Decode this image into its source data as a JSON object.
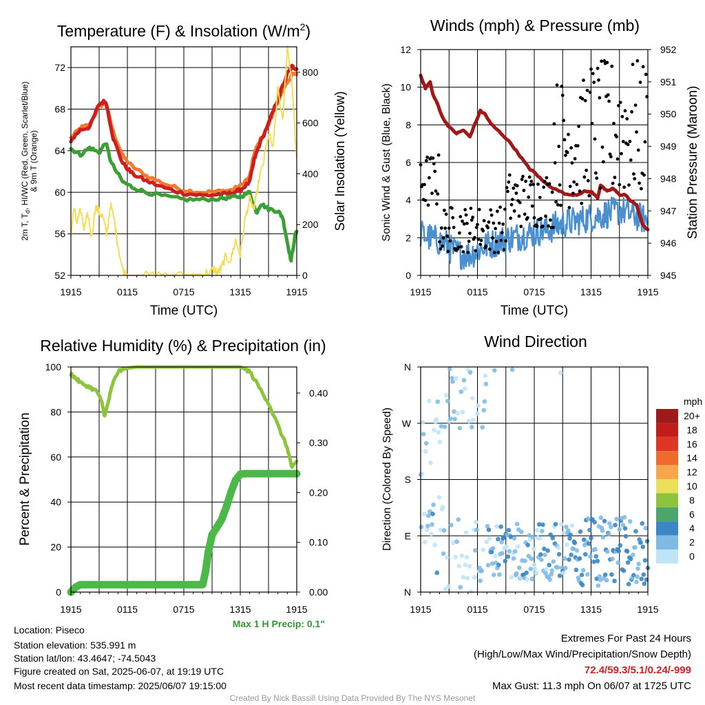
{
  "panels": {
    "temp": {
      "title": "Temperature (F) & Insolation (W/m",
      "title_sup": "2",
      "title_close": ")",
      "ylabel_left_line1": "2m T, T",
      "ylabel_left_sub": "d",
      "ylabel_left_line1b": ", HI/WC (Red, Green, Scarlet/Blue)",
      "ylabel_left_line2": "& 9m T (Orange)",
      "ylabel_right": "Solar Insolation (Yellow)",
      "xlabel": "Time (UTC)"
    },
    "wind": {
      "title": "Winds (mph) & Pressure (mb)",
      "ylabel_left": "Sonic Wind & Gust (Blue, Black)",
      "ylabel_right": "Station Pressure (Maroon)",
      "xlabel": "Time (UTC)"
    },
    "rh": {
      "title": "Relative Humidity (%) & Precipitation (in)",
      "ylabel_left": "Percent & Precipitation",
      "max_precip": "Max 1 H Precip: 0.1\""
    },
    "dir": {
      "title": "Wind Direction",
      "ylabel_left": "Direction (Colored By Speed)",
      "legend_unit": "mph"
    }
  },
  "footer": {
    "location": "Location: Piseco",
    "elevation": "Station elevation: 535.991 m",
    "latlon": "Station lat/lon: 43.4647; -74.5043",
    "created": "Figure created on Sat, 2025-06-07, at 19:19 UTC",
    "recent": "Most recent data timestamp: 2025/06/07 19:15:00",
    "extremes_title": "Extremes For Past 24 Hours",
    "extremes_sub": "(High/Low/Max Wind/Precipitation/Snow Depth)",
    "extremes_values": "72.4/59.3/5.1/0.24/-999",
    "max_gust": "Max Gust: 11.3 mph On 06/07 at 1725 UTC",
    "credit": "Created By Nick Bassill Using Data Provided By The NYS Mesonet"
  },
  "colors": {
    "temp_red": "#cc1f1f",
    "dewpoint_green": "#3aa035",
    "t9m_orange": "#f07a30",
    "insolation_yellow": "#f5dc50",
    "wind_blue": "#4a90d0",
    "gust_black": "#000000",
    "pressure_maroon": "#a01818",
    "rh_lightgreen": "#8cc43c",
    "precip_green": "#4cb848",
    "precip_label_green": "#2e9a2e",
    "extremes_red": "#d02020",
    "credit_gray": "#999999"
  },
  "chart_data": [
    {
      "type": "line",
      "panel": "temp",
      "x_ticks": [
        "1915",
        "0115",
        "0715",
        "1315",
        "1915"
      ],
      "x_range": [
        0,
        24
      ],
      "ylim": [
        52,
        74
      ],
      "y_ticks": [
        52,
        56,
        60,
        64,
        68,
        72
      ],
      "y2lim": [
        0,
        900
      ],
      "y2_ticks": [
        0,
        200,
        400,
        600,
        800
      ],
      "series": [
        {
          "axis": "left",
          "color_key": "t9m_orange",
          "x": [
            0,
            1,
            2,
            3,
            3.7,
            4.5,
            5.5,
            6.5,
            8,
            10,
            12,
            14,
            16,
            17,
            18,
            19,
            19.5,
            20,
            21,
            22,
            23,
            23.5,
            24
          ],
          "y": [
            65.2,
            66.2,
            66.5,
            68.3,
            68.6,
            65.8,
            63.5,
            62.5,
            61.6,
            60.8,
            60.2,
            60.0,
            60.1,
            60.2,
            60.6,
            61.5,
            63.8,
            64.8,
            66.5,
            68.8,
            70.5,
            71.4,
            71.3
          ]
        },
        {
          "axis": "left",
          "color_key": "temp_red",
          "x": [
            0,
            1,
            2,
            3,
            3.7,
            4.5,
            5.5,
            6.5,
            8,
            10,
            12,
            14,
            16,
            17,
            18,
            19,
            19.5,
            20,
            21,
            22,
            23,
            23.5,
            24
          ],
          "y": [
            65.0,
            66.0,
            66.3,
            68.5,
            68.8,
            65.2,
            62.8,
            61.8,
            61.1,
            60.4,
            59.9,
            59.7,
            59.8,
            59.9,
            60.2,
            61.0,
            63.2,
            64.5,
            66.6,
            69.0,
            71.4,
            72.1,
            71.9
          ]
        },
        {
          "axis": "left",
          "color_key": "dewpoint_green",
          "x": [
            0,
            1,
            2,
            3,
            3.7,
            4.3,
            5.5,
            6.5,
            8,
            10,
            12,
            14,
            16,
            17,
            18,
            19,
            19.7,
            20.2,
            21,
            22,
            22.5,
            23,
            23.4,
            23.8,
            24
          ],
          "y": [
            64.2,
            63.6,
            64.3,
            63.8,
            64.8,
            62.8,
            61.0,
            60.5,
            60.0,
            59.6,
            59.3,
            59.3,
            59.4,
            59.5,
            59.6,
            60.0,
            58.0,
            58.9,
            58.4,
            58.2,
            57.6,
            55.2,
            53.4,
            55.7,
            56.3
          ]
        },
        {
          "axis": "right",
          "color_key": "insolation_yellow",
          "x": [
            0,
            0.3,
            0.6,
            1,
            1.4,
            1.8,
            2.2,
            2.6,
            3,
            3.4,
            3.8,
            4.2,
            4.6,
            5,
            5.5,
            6,
            8,
            10,
            12,
            14,
            14.8,
            15.2,
            15.6,
            16,
            16.4,
            17,
            17.5,
            18,
            18.5,
            19,
            19.5,
            20,
            20.5,
            21,
            21.5,
            22,
            22.5,
            23,
            23.5,
            24
          ],
          "y": [
            150,
            270,
            210,
            260,
            180,
            240,
            150,
            270,
            250,
            230,
            160,
            280,
            220,
            120,
            20,
            0,
            0,
            0,
            0,
            5,
            15,
            25,
            10,
            30,
            70,
            60,
            140,
            80,
            220,
            300,
            260,
            380,
            450,
            560,
            500,
            740,
            600,
            900,
            760,
            450
          ]
        }
      ]
    },
    {
      "type": "line",
      "panel": "wind",
      "x_ticks": [
        "1915",
        "0115",
        "0715",
        "1315",
        "1915"
      ],
      "x_range": [
        0,
        24
      ],
      "ylim": [
        0,
        12
      ],
      "y_ticks": [
        0,
        2,
        4,
        6,
        8,
        10,
        12
      ],
      "y2lim": [
        945,
        952
      ],
      "y2_ticks": [
        945,
        946,
        947,
        948,
        949,
        950,
        951,
        952
      ],
      "series": [
        {
          "axis": "right",
          "color_key": "pressure_maroon",
          "x": [
            0,
            0.5,
            1,
            1.3,
            1.8,
            2.3,
            3,
            3.8,
            4.5,
            5.2,
            6.3,
            6.8,
            7.4,
            8.5,
            9.5,
            10.5,
            11.5,
            12,
            13,
            14,
            15.5,
            16.5,
            17.3,
            18,
            18.7,
            19,
            19.7,
            20.3,
            21,
            21.6,
            22.2,
            22.8,
            23.4,
            24
          ],
          "y": [
            951.2,
            950.8,
            951.0,
            950.6,
            950.3,
            949.9,
            949.6,
            949.4,
            949.5,
            949.3,
            950.1,
            950.0,
            949.7,
            949.4,
            949.1,
            948.7,
            948.3,
            948.2,
            947.9,
            947.7,
            947.5,
            947.5,
            947.6,
            947.6,
            947.4,
            947.8,
            947.6,
            947.7,
            947.5,
            947.5,
            947.3,
            947.2,
            946.6,
            946.4
          ]
        },
        {
          "axis": "left",
          "color_key": "wind_blue",
          "gen": "wind"
        },
        {
          "axis": "left",
          "color_key": "gust_black",
          "gen": "gust",
          "mark": "points"
        }
      ]
    },
    {
      "type": "line",
      "panel": "rh",
      "x_ticks": [
        "1915",
        "0115",
        "0715",
        "1315",
        "1915"
      ],
      "x_range": [
        0,
        24
      ],
      "ylim": [
        0,
        100
      ],
      "y_ticks": [
        0,
        20,
        40,
        60,
        80,
        100
      ],
      "y2lim": [
        0,
        0.4524
      ],
      "y2_ticks": [
        0.0,
        0.1,
        0.2,
        0.3,
        0.4
      ],
      "y2_tick_labels": [
        "0.00",
        "0.10",
        "0.20",
        "0.30",
        "0.40"
      ],
      "series": [
        {
          "axis": "left",
          "color_key": "rh_lightgreen",
          "x": [
            0,
            0.5,
            1,
            2,
            2.8,
            3.3,
            3.6,
            4,
            4.4,
            5,
            6,
            7,
            8,
            10,
            12,
            14,
            16,
            17,
            17.5,
            18,
            18.5,
            19,
            20,
            21,
            22,
            23,
            23.5,
            24
          ],
          "y": [
            97,
            95,
            93,
            91,
            89,
            84,
            78,
            85,
            92,
            98,
            99.5,
            100,
            100,
            100,
            100,
            100,
            100,
            100,
            100,
            100,
            99,
            98,
            91,
            84,
            74,
            64,
            55,
            58
          ]
        },
        {
          "axis": "right",
          "color_key": "precip_green",
          "x": [
            0,
            0.5,
            1,
            3,
            6,
            10,
            14,
            14.3,
            14.6,
            15,
            15.5,
            16,
            16.5,
            17,
            17.5,
            18,
            18.5,
            19,
            20,
            22,
            24
          ],
          "y": [
            0.0,
            0.01,
            0.015,
            0.015,
            0.015,
            0.015,
            0.015,
            0.04,
            0.08,
            0.115,
            0.13,
            0.145,
            0.17,
            0.2,
            0.225,
            0.237,
            0.238,
            0.238,
            0.238,
            0.238,
            0.238
          ]
        }
      ]
    },
    {
      "type": "scatter",
      "panel": "dir",
      "x_ticks": [
        "1915",
        "0115",
        "0715",
        "1315",
        "1915"
      ],
      "x_range": [
        0,
        24
      ],
      "ylim": [
        0,
        360
      ],
      "y_ticks": [
        "N",
        "E",
        "S",
        "W",
        "N"
      ],
      "legend_levels": [
        "20+",
        "18",
        "16",
        "14",
        "12",
        "10",
        "8",
        "6",
        "4",
        "2",
        "0"
      ],
      "legend_colors": [
        "#9e1b1b",
        "#c21d1d",
        "#df3525",
        "#f06a2c",
        "#f8a64c",
        "#ece05a",
        "#8cc43c",
        "#4ca66c",
        "#3b86c4",
        "#7fbae6",
        "#bfe4f8"
      ]
    }
  ]
}
